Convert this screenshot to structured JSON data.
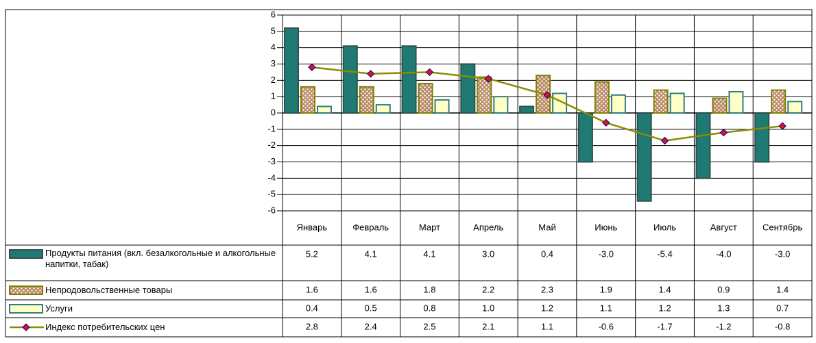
{
  "chart_data": {
    "type": "bar",
    "categories": [
      "Январь",
      "Февраль",
      "Март",
      "Апрель",
      "Май",
      "Июнь",
      "Июль",
      "Август",
      "Сентябрь"
    ],
    "ylim": [
      -6,
      6
    ],
    "yticks": [
      -6,
      -5,
      -4,
      -3,
      -2,
      -1,
      0,
      1,
      2,
      3,
      4,
      5,
      6
    ],
    "grid": true,
    "series": [
      {
        "name": "Продукты питания (вкл. безалкогольные и алкогольные напитки, табак)",
        "type": "bar",
        "color": "#1f7a74",
        "stroke": "#2f4f4f",
        "values": [
          5.2,
          4.1,
          4.1,
          3.0,
          0.4,
          -3.0,
          -5.4,
          -4.0,
          -3.0
        ],
        "value_labels": [
          "5.2",
          "4.1",
          "4.1",
          "3.0",
          "0.4",
          "-3.0",
          "-5.4",
          "-4.0",
          "-3.0"
        ]
      },
      {
        "name": "Непродовольственные товары",
        "type": "bar",
        "color": "#b98a64",
        "stroke": "#808000",
        "values": [
          1.6,
          1.6,
          1.8,
          2.2,
          2.3,
          1.9,
          1.4,
          0.9,
          1.4
        ],
        "value_labels": [
          "1.6",
          "1.6",
          "1.8",
          "2.2",
          "2.3",
          "1.9",
          "1.4",
          "0.9",
          "1.4"
        ]
      },
      {
        "name": "Услуги",
        "type": "bar",
        "color": "#ffffc8",
        "stroke": "#2f7f7f",
        "values": [
          0.4,
          0.5,
          0.8,
          1.0,
          1.2,
          1.1,
          1.2,
          1.3,
          0.7
        ],
        "value_labels": [
          "0.4",
          "0.5",
          "0.8",
          "1.0",
          "1.2",
          "1.1",
          "1.2",
          "1.3",
          "0.7"
        ]
      },
      {
        "name": "Индекс потребительских цен",
        "type": "line",
        "color": "#8b8b00",
        "marker_color": "#e0102f",
        "values": [
          2.8,
          2.4,
          2.5,
          2.1,
          1.1,
          -0.6,
          -1.7,
          -1.2,
          -0.8
        ],
        "value_labels": [
          "2.8",
          "2.4",
          "2.5",
          "2.1",
          "1.1",
          "-0.6",
          "-1.7",
          "-1.2",
          "-0.8"
        ]
      }
    ]
  }
}
